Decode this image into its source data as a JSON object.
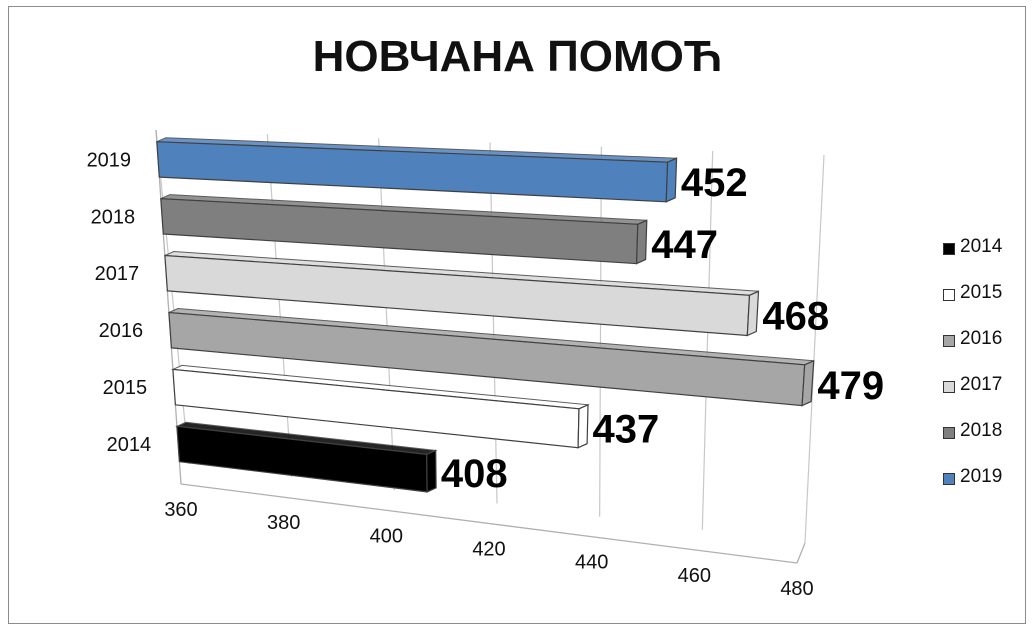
{
  "chart_data": {
    "type": "bar",
    "orientation": "horizontal",
    "title": "НОВЧАНА ПОМОЋ",
    "categories": [
      "2014",
      "2015",
      "2016",
      "2017",
      "2018",
      "2019"
    ],
    "values": [
      408,
      437,
      479,
      468,
      447,
      452
    ],
    "colors": [
      "#000000",
      "#ffffff",
      "#a6a6a6",
      "#d9d9d9",
      "#7f7f7f",
      "#4f81bd"
    ],
    "xticks": [
      "360",
      "380",
      "400",
      "420",
      "440",
      "460",
      "480"
    ],
    "xlim": [
      360,
      480
    ],
    "grid": true,
    "legend": "right",
    "legend_entries": [
      "2014",
      "2015",
      "2016",
      "2017",
      "2018",
      "2019"
    ]
  }
}
